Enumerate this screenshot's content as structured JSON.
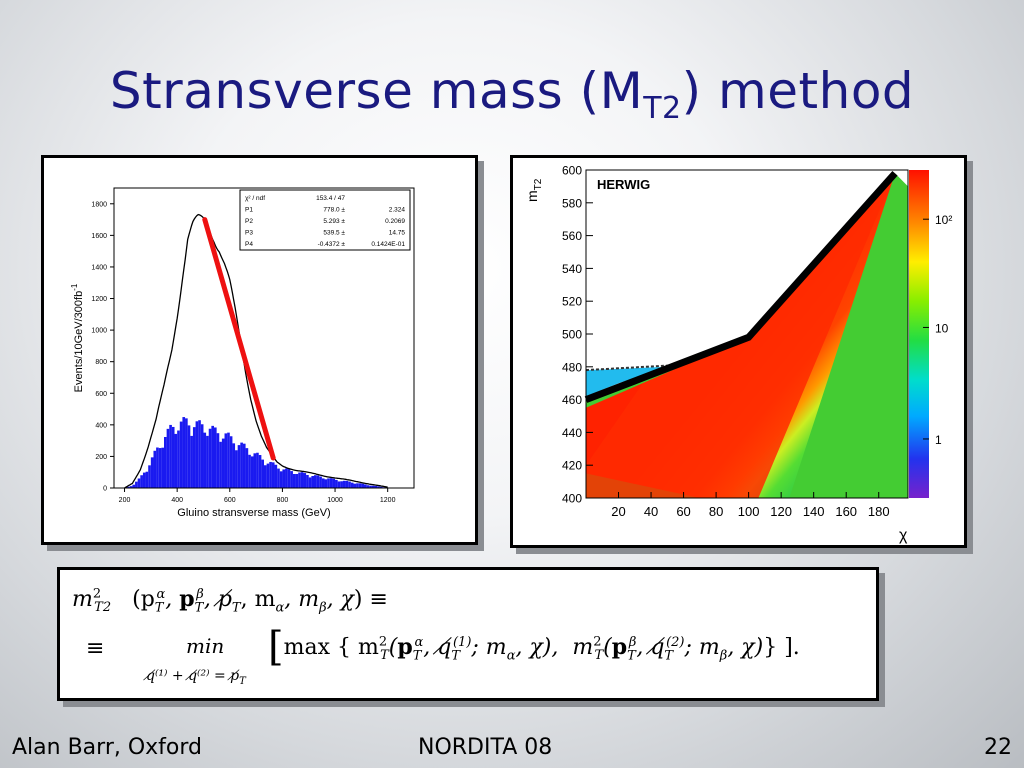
{
  "slide": {
    "title_main": "Stransverse mass (M",
    "title_sub": "T2",
    "title_end": ") method",
    "footer_left": "Alan Barr, Oxford",
    "footer_center": "NORDITA 08",
    "footer_right": "22"
  },
  "chart_data": [
    {
      "type": "histogram",
      "xlabel": "Gluino stransverse mass (GeV)",
      "ylabel": "Events/10GeV/300fb",
      "ylabel_sup": "-1",
      "x_ticks": [
        "200",
        "400",
        "600",
        "800",
        "1000",
        "1200"
      ],
      "y_ticks": [
        "0",
        "200",
        "400",
        "600",
        "800",
        "1000",
        "1200",
        "1400",
        "1600",
        "1800"
      ],
      "xlim": [
        160,
        1300
      ],
      "ylim": [
        0,
        1900
      ],
      "series": [
        {
          "values_x": [
            200,
            230,
            260,
            290,
            320,
            350,
            380,
            400,
            420,
            440,
            460,
            480,
            500,
            520,
            540,
            560,
            580,
            600,
            620,
            640,
            660,
            680,
            700,
            720,
            740,
            760,
            780,
            800,
            850,
            900,
            950,
            1000,
            1050,
            1100,
            1150,
            1200
          ],
          "values_y": [
            0,
            30,
            120,
            260,
            420,
            640,
            900,
            1120,
            1350,
            1560,
            1630,
            1670,
            1690,
            1680,
            1620,
            1540,
            1420,
            1280,
            1100,
            920,
            740,
            580,
            440,
            330,
            250,
            200,
            160,
            140,
            115,
            95,
            80,
            65,
            50,
            35,
            20,
            5
          ]
        },
        {
          "values_x": [
            200,
            230,
            260,
            290,
            320,
            350,
            380,
            400,
            420,
            440,
            460,
            480,
            500,
            520,
            540,
            560,
            580,
            600,
            620,
            640,
            660,
            680,
            700,
            720,
            740,
            760,
            780,
            800,
            850,
            900,
            950,
            1000,
            1050,
            1100,
            1150,
            1200
          ],
          "values_y": [
            0,
            15,
            60,
            130,
            220,
            300,
            360,
            380,
            390,
            395,
            385,
            375,
            370,
            360,
            340,
            330,
            320,
            300,
            280,
            260,
            240,
            220,
            200,
            180,
            160,
            145,
            130,
            115,
            95,
            80,
            65,
            50,
            38,
            25,
            12,
            3
          ]
        }
      ],
      "fit_line": {
        "x": [
          505,
          765
        ],
        "y": [
          1700,
          190
        ]
      },
      "stats_box": {
        "rows": [
          [
            "χ² / ndf",
            "153.4  /  47",
            ""
          ],
          [
            "P1",
            "778.0 ±",
            "2.324"
          ],
          [
            "P2",
            "5.293 ±",
            "0.2069"
          ],
          [
            "P3",
            "539.5 ±",
            "14.75"
          ],
          [
            "P4",
            "-0.4372 ±",
            "0.1424E-01"
          ]
        ]
      }
    },
    {
      "type": "heatmap",
      "label": "HERWIG",
      "xlabel": "χ",
      "ylabel_main": "m",
      "ylabel_sub": "T2",
      "x_ticks": [
        "20",
        "40",
        "60",
        "80",
        "100",
        "120",
        "140",
        "160",
        "180"
      ],
      "y_ticks": [
        "400",
        "420",
        "440",
        "460",
        "480",
        "500",
        "520",
        "540",
        "560",
        "580",
        "600"
      ],
      "xlim": [
        0,
        198
      ],
      "ylim": [
        400,
        600
      ],
      "colorbar_ticks": [
        "1",
        "10",
        "10²"
      ],
      "kink_curve": {
        "x": [
          0,
          100,
          190
        ],
        "y": [
          460,
          498,
          598
        ]
      }
    }
  ],
  "formula": {
    "line1_lhs": "m",
    "line1_lhs_sup": "2",
    "line1_lhs_sub": "T2",
    "line1_rhs": "(p",
    "line1_rhs_end": ", m",
    "line1_end": ") ≡",
    "line2_eq": "≡",
    "line2_min": "min",
    "line2_constraint": "q̸⁽¹⁾ + q̸⁽²⁾ = p̸",
    "line2_body": "max { m",
    "line2_end": "} ]."
  }
}
